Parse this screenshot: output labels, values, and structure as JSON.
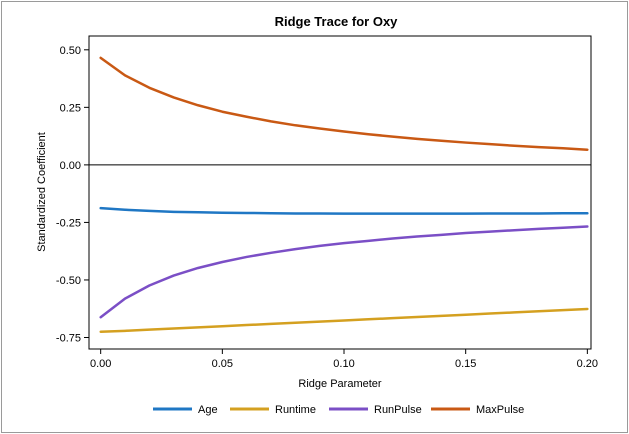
{
  "chart_data": {
    "type": "line",
    "title": "Ridge Trace for Oxy",
    "xlabel": "Ridge Parameter",
    "ylabel": "Standardized Coefficient",
    "xlim": [
      -0.0048,
      0.2015
    ],
    "ylim": [
      -0.8,
      0.56
    ],
    "x_ticks": [
      0.0,
      0.05,
      0.1,
      0.15,
      0.2
    ],
    "x_tick_labels": [
      "0.00",
      "0.05",
      "0.10",
      "0.15",
      "0.20"
    ],
    "y_ticks": [
      0.5,
      0.25,
      0.0,
      -0.25,
      -0.5,
      -0.75
    ],
    "y_tick_labels": [
      "0.50",
      "0.25",
      "0.00",
      "-0.25",
      "-0.50",
      "-0.75"
    ],
    "reference_line_y": 0,
    "grid": false,
    "legend_position": "bottom",
    "x": [
      0.0,
      0.01,
      0.02,
      0.03,
      0.04,
      0.05,
      0.06,
      0.07,
      0.08,
      0.09,
      0.1,
      0.11,
      0.12,
      0.13,
      0.14,
      0.15,
      0.16,
      0.17,
      0.18,
      0.19,
      0.2
    ],
    "series": [
      {
        "name": "Age",
        "color": "#1f77c4",
        "values": [
          -0.188,
          -0.195,
          -0.2,
          -0.204,
          -0.206,
          -0.208,
          -0.209,
          -0.21,
          -0.211,
          -0.211,
          -0.212,
          -0.212,
          -0.212,
          -0.212,
          -0.212,
          -0.212,
          -0.211,
          -0.211,
          -0.211,
          -0.21,
          -0.21
        ]
      },
      {
        "name": "Runtime",
        "color": "#d4a020",
        "values": [
          -0.725,
          -0.721,
          -0.716,
          -0.711,
          -0.706,
          -0.701,
          -0.696,
          -0.691,
          -0.686,
          -0.681,
          -0.676,
          -0.671,
          -0.666,
          -0.661,
          -0.656,
          -0.651,
          -0.646,
          -0.641,
          -0.636,
          -0.631,
          -0.626
        ]
      },
      {
        "name": "RunPulse",
        "color": "#7b4fc6",
        "values": [
          -0.662,
          -0.581,
          -0.524,
          -0.481,
          -0.448,
          -0.422,
          -0.4,
          -0.382,
          -0.366,
          -0.352,
          -0.34,
          -0.33,
          -0.32,
          -0.311,
          -0.304,
          -0.296,
          -0.29,
          -0.284,
          -0.278,
          -0.273,
          -0.268
        ]
      },
      {
        "name": "MaxPulse",
        "color": "#c95914",
        "values": [
          0.465,
          0.389,
          0.335,
          0.293,
          0.259,
          0.231,
          0.209,
          0.189,
          0.172,
          0.158,
          0.145,
          0.133,
          0.123,
          0.113,
          0.105,
          0.097,
          0.09,
          0.083,
          0.077,
          0.072,
          0.066
        ]
      }
    ]
  }
}
